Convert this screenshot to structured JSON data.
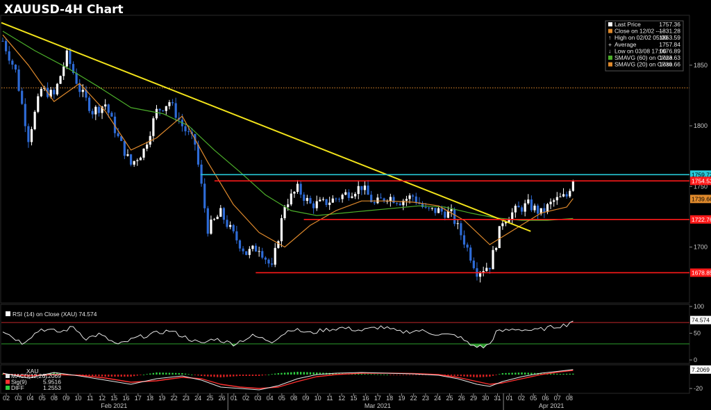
{
  "title": "XAUUSD-4H Chart",
  "colors": {
    "background": "#000000",
    "up_candle": "#ffffff",
    "down_candle": "#2e6bd6",
    "sma60": "#4caf2a",
    "sma20": "#e08a2c",
    "trendline": "#f2e31a",
    "support_resistance": "#ff1a1a",
    "cyan_level": "#27c9d8",
    "high_line": "#e08a2c",
    "rsi_line": "#e6e6e6",
    "rsi_overbought": "#c0262b",
    "rsi_oversold": "#2d9c2d",
    "macd_line": "#e6e6e6",
    "signal_line": "#ff3030",
    "diff_positive": "#2ecc40",
    "diff_negative": "#d42020"
  },
  "legend": {
    "rows": [
      {
        "icon": "white-square",
        "label": "Last Price",
        "value": "1757.36"
      },
      {
        "icon": "orange-square",
        "label": "Close on 12/02 ----",
        "value": "1831.28"
      },
      {
        "icon": "high-marker",
        "label": "High on 02/02 05:00",
        "value": "1863.59"
      },
      {
        "icon": "average-marker",
        "label": "Average",
        "value": "1757.84"
      },
      {
        "icon": "low-marker",
        "label": "Low on 03/08 17:00",
        "value": "1676.89"
      },
      {
        "icon": "green-square",
        "label": "SMAVG (60)  on Close",
        "value": "1723.63"
      },
      {
        "icon": "orange-square",
        "label": "SMAVG (20)  on Close",
        "value": "1739.66"
      }
    ]
  },
  "chart_data": [
    {
      "type": "candlestick",
      "panel": "price",
      "ylim": [
        1655,
        1890
      ],
      "yticks": [
        "1850",
        "1800",
        "1750",
        "1700"
      ],
      "ytick_values": [
        1850,
        1800,
        1750,
        1700
      ],
      "close_line": 1831.28,
      "levels": [
        {
          "value": 1759.72,
          "label": "1759.72",
          "color": "#27c9d8",
          "from": 0.29
        },
        {
          "value": 1754.53,
          "label": "1754.53",
          "color": "#ff1a1a",
          "from": 0.31
        },
        {
          "value": 1722.76,
          "label": "1722.76",
          "color": "#ff1a1a",
          "from": 0.44
        },
        {
          "value": 1678.85,
          "label": "1678.85",
          "color": "#ff1a1a",
          "from": 0.37
        }
      ],
      "sma20_label": "1739.66",
      "trendline": {
        "from": {
          "x": 0.0,
          "y": 1885
        },
        "to": {
          "x": 0.77,
          "y": 1713
        }
      },
      "anchors": [
        [
          0,
          1870
        ],
        [
          4,
          1845
        ],
        [
          8,
          1790
        ],
        [
          12,
          1830
        ],
        [
          16,
          1825
        ],
        [
          20,
          1858
        ],
        [
          24,
          1830
        ],
        [
          28,
          1812
        ],
        [
          32,
          1818
        ],
        [
          36,
          1790
        ],
        [
          40,
          1768
        ],
        [
          44,
          1780
        ],
        [
          48,
          1812
        ],
        [
          52,
          1820
        ],
        [
          56,
          1800
        ],
        [
          60,
          1785
        ],
        [
          64,
          1715
        ],
        [
          68,
          1728
        ],
        [
          72,
          1710
        ],
        [
          76,
          1695
        ],
        [
          80,
          1700
        ],
        [
          84,
          1682
        ],
        [
          88,
          1735
        ],
        [
          92,
          1748
        ],
        [
          96,
          1735
        ],
        [
          100,
          1736
        ],
        [
          104,
          1740
        ],
        [
          108,
          1745
        ],
        [
          112,
          1750
        ],
        [
          116,
          1735
        ],
        [
          120,
          1742
        ],
        [
          124,
          1738
        ],
        [
          128,
          1742
        ],
        [
          132,
          1730
        ],
        [
          136,
          1730
        ],
        [
          140,
          1727
        ],
        [
          144,
          1705
        ],
        [
          148,
          1680
        ],
        [
          152,
          1685
        ],
        [
          156,
          1722
        ],
        [
          160,
          1730
        ],
        [
          164,
          1735
        ],
        [
          168,
          1728
        ],
        [
          172,
          1738
        ],
        [
          176,
          1742
        ],
        [
          178,
          1757
        ]
      ],
      "sma20": [
        [
          0,
          1875
        ],
        [
          8,
          1850
        ],
        [
          16,
          1820
        ],
        [
          24,
          1835
        ],
        [
          32,
          1812
        ],
        [
          40,
          1780
        ],
        [
          48,
          1790
        ],
        [
          56,
          1808
        ],
        [
          64,
          1770
        ],
        [
          72,
          1735
        ],
        [
          80,
          1712
        ],
        [
          88,
          1700
        ],
        [
          96,
          1718
        ],
        [
          104,
          1730
        ],
        [
          112,
          1738
        ],
        [
          120,
          1738
        ],
        [
          128,
          1737
        ],
        [
          136,
          1734
        ],
        [
          144,
          1722
        ],
        [
          152,
          1702
        ],
        [
          160,
          1715
        ],
        [
          168,
          1728
        ],
        [
          176,
          1733
        ],
        [
          178,
          1740
        ]
      ],
      "sma60": [
        [
          0,
          1878
        ],
        [
          10,
          1862
        ],
        [
          20,
          1848
        ],
        [
          30,
          1832
        ],
        [
          40,
          1815
        ],
        [
          50,
          1810
        ],
        [
          58,
          1800
        ],
        [
          66,
          1780
        ],
        [
          74,
          1762
        ],
        [
          82,
          1743
        ],
        [
          90,
          1730
        ],
        [
          98,
          1726
        ],
        [
          106,
          1728
        ],
        [
          114,
          1730
        ],
        [
          122,
          1732
        ],
        [
          130,
          1734
        ],
        [
          138,
          1733
        ],
        [
          146,
          1728
        ],
        [
          154,
          1724
        ],
        [
          162,
          1722
        ],
        [
          170,
          1722
        ],
        [
          178,
          1723.6
        ]
      ]
    },
    {
      "type": "line",
      "panel": "rsi",
      "label": "RSI (14)  on Close (XAU) 74.574",
      "value_label": "74.574",
      "ylim": [
        0,
        100
      ],
      "yticks": [
        "100",
        "50",
        "0"
      ],
      "ytick_values": [
        100,
        50,
        0
      ],
      "overbought": 70,
      "oversold": 30,
      "anchors": [
        [
          0,
          55
        ],
        [
          6,
          32
        ],
        [
          12,
          58
        ],
        [
          18,
          52
        ],
        [
          22,
          62
        ],
        [
          26,
          40
        ],
        [
          30,
          48
        ],
        [
          36,
          28
        ],
        [
          42,
          42
        ],
        [
          48,
          50
        ],
        [
          52,
          55
        ],
        [
          56,
          45
        ],
        [
          62,
          30
        ],
        [
          66,
          40
        ],
        [
          72,
          30
        ],
        [
          78,
          45
        ],
        [
          84,
          35
        ],
        [
          90,
          58
        ],
        [
          96,
          50
        ],
        [
          100,
          56
        ],
        [
          106,
          60
        ],
        [
          112,
          55
        ],
        [
          118,
          62
        ],
        [
          124,
          52
        ],
        [
          130,
          55
        ],
        [
          136,
          48
        ],
        [
          142,
          45
        ],
        [
          146,
          28
        ],
        [
          150,
          24
        ],
        [
          152,
          30
        ],
        [
          154,
          52
        ],
        [
          160,
          58
        ],
        [
          166,
          55
        ],
        [
          172,
          62
        ],
        [
          176,
          66
        ],
        [
          178,
          74.574
        ]
      ]
    },
    {
      "type": "line",
      "panel": "macd",
      "label": "XAU",
      "series": [
        {
          "name": "MACD(12,26)",
          "value": "7.2069"
        },
        {
          "name": "Sig(9)",
          "value": "5.9516"
        },
        {
          "name": "DIFF",
          "value": "1.2553"
        }
      ],
      "value_label": "7.2069",
      "ylim": [
        -25,
        12
      ],
      "yticks": [
        "-20"
      ],
      "ytick_values": [
        -20
      ],
      "macd": [
        [
          0,
          2
        ],
        [
          8,
          -5
        ],
        [
          16,
          3
        ],
        [
          24,
          -2
        ],
        [
          32,
          -8
        ],
        [
          40,
          -14
        ],
        [
          48,
          -6
        ],
        [
          56,
          -2
        ],
        [
          62,
          -8
        ],
        [
          68,
          -18
        ],
        [
          74,
          -20
        ],
        [
          80,
          -22
        ],
        [
          86,
          -16
        ],
        [
          92,
          -6
        ],
        [
          98,
          0
        ],
        [
          104,
          2
        ],
        [
          112,
          3
        ],
        [
          120,
          2
        ],
        [
          128,
          1
        ],
        [
          136,
          -1
        ],
        [
          142,
          -6
        ],
        [
          148,
          -14
        ],
        [
          152,
          -17
        ],
        [
          156,
          -10
        ],
        [
          162,
          -3
        ],
        [
          168,
          2
        ],
        [
          174,
          5
        ],
        [
          178,
          7.2
        ]
      ],
      "signal": [
        [
          0,
          1
        ],
        [
          8,
          -2
        ],
        [
          16,
          0
        ],
        [
          24,
          -1
        ],
        [
          32,
          -5
        ],
        [
          40,
          -11
        ],
        [
          48,
          -9
        ],
        [
          56,
          -4
        ],
        [
          62,
          -6
        ],
        [
          68,
          -14
        ],
        [
          74,
          -18
        ],
        [
          80,
          -20
        ],
        [
          86,
          -18
        ],
        [
          92,
          -10
        ],
        [
          98,
          -3
        ],
        [
          104,
          0
        ],
        [
          112,
          2
        ],
        [
          120,
          2
        ],
        [
          128,
          1.5
        ],
        [
          136,
          0
        ],
        [
          142,
          -4
        ],
        [
          148,
          -10
        ],
        [
          152,
          -14
        ],
        [
          156,
          -12
        ],
        [
          162,
          -6
        ],
        [
          168,
          0
        ],
        [
          174,
          4
        ],
        [
          178,
          5.95
        ]
      ]
    }
  ],
  "x_axis": {
    "dates": [
      "02",
      "03",
      "04",
      "05",
      "08",
      "09",
      "10",
      "11",
      "12",
      "15",
      "16",
      "17",
      "18",
      "19",
      "22",
      "23",
      "24",
      "25",
      "26",
      "01",
      "02",
      "03",
      "04",
      "05",
      "08",
      "09",
      "10",
      "11",
      "12",
      "15",
      "16",
      "17",
      "18",
      "19",
      "22",
      "23",
      "24",
      "25",
      "26",
      "29",
      "30",
      "31",
      "01",
      "02",
      "05",
      "06",
      "07",
      "08"
    ],
    "months": [
      {
        "label": "Feb 2021",
        "at": 9
      },
      {
        "label": "Mar 2021",
        "at": 31
      },
      {
        "label": "Apr 2021",
        "at": 45.5
      }
    ],
    "separators": [
      19,
      42
    ]
  }
}
